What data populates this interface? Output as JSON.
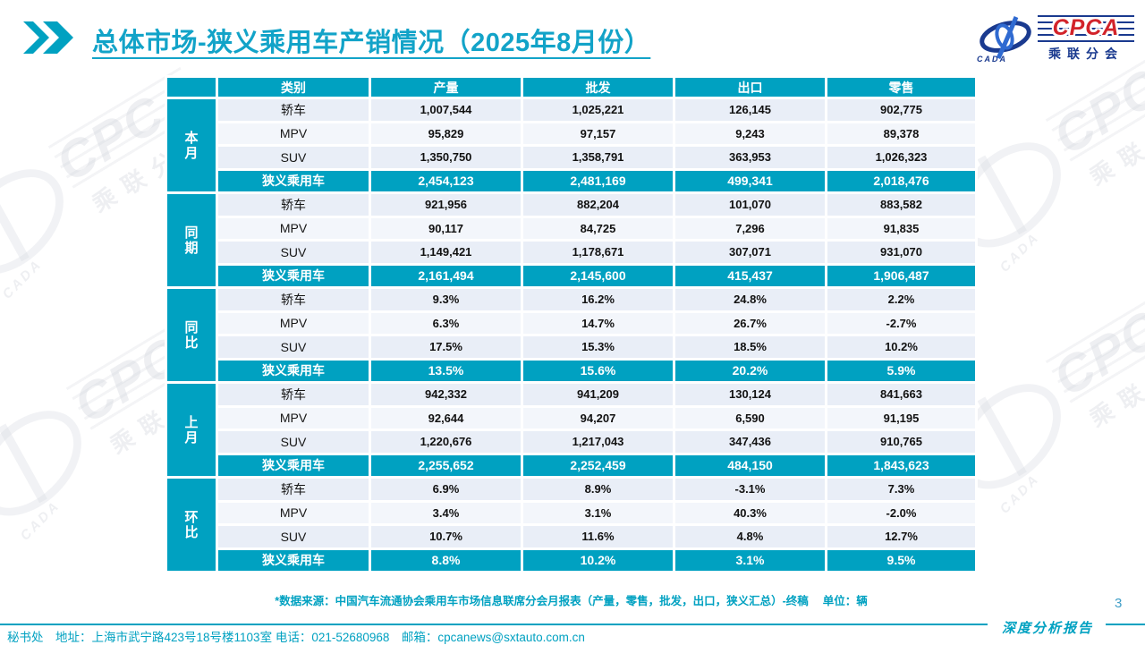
{
  "page": {
    "title": "总体市场-狭义乘用车产销情况（2025年8月份）",
    "footnote": "*数据来源：中国汽车流通协会乘用车市场信息联席分会月报表（产量，零售，批发，出口，狭义汇总）-终稿　 单位：辆",
    "footer_contact": "秘书处　地址：上海市武宁路423号18号楼1103室 电话：021-52680968　邮箱：cpcanews@sxtauto.com.cn",
    "report_label": "深度分析报告",
    "page_number": "3"
  },
  "logo": {
    "cpca": "CPCA",
    "cada": "CADA",
    "subtitle": "乘联分会"
  },
  "colors": {
    "accent": "#00a1c1",
    "title": "#12a3c8",
    "row_light": "#e9eef7",
    "row_lighter": "#f3f6fb",
    "logo_blue": "#1a3a8f",
    "logo_red": "#d2232a",
    "page_number_blue": "#3f9ec7"
  },
  "table": {
    "columns": [
      "类别",
      "产量",
      "批发",
      "出口",
      "零售"
    ],
    "summary_label": "狭义乘用车",
    "groups": [
      {
        "label": "本月",
        "rows": [
          {
            "category": "轿车",
            "values": [
              "1,007,544",
              "1,025,221",
              "126,145",
              "902,775"
            ]
          },
          {
            "category": "MPV",
            "values": [
              "95,829",
              "97,157",
              "9,243",
              "89,378"
            ]
          },
          {
            "category": "SUV",
            "values": [
              "1,350,750",
              "1,358,791",
              "363,953",
              "1,026,323"
            ]
          }
        ],
        "summary": [
          "2,454,123",
          "2,481,169",
          "499,341",
          "2,018,476"
        ]
      },
      {
        "label": "同期",
        "rows": [
          {
            "category": "轿车",
            "values": [
              "921,956",
              "882,204",
              "101,070",
              "883,582"
            ]
          },
          {
            "category": "MPV",
            "values": [
              "90,117",
              "84,725",
              "7,296",
              "91,835"
            ]
          },
          {
            "category": "SUV",
            "values": [
              "1,149,421",
              "1,178,671",
              "307,071",
              "931,070"
            ]
          }
        ],
        "summary": [
          "2,161,494",
          "2,145,600",
          "415,437",
          "1,906,487"
        ]
      },
      {
        "label": "同比",
        "rows": [
          {
            "category": "轿车",
            "values": [
              "9.3%",
              "16.2%",
              "24.8%",
              "2.2%"
            ]
          },
          {
            "category": "MPV",
            "values": [
              "6.3%",
              "14.7%",
              "26.7%",
              "-2.7%"
            ]
          },
          {
            "category": "SUV",
            "values": [
              "17.5%",
              "15.3%",
              "18.5%",
              "10.2%"
            ]
          }
        ],
        "summary": [
          "13.5%",
          "15.6%",
          "20.2%",
          "5.9%"
        ]
      },
      {
        "label": "上月",
        "rows": [
          {
            "category": "轿车",
            "values": [
              "942,332",
              "941,209",
              "130,124",
              "841,663"
            ]
          },
          {
            "category": "MPV",
            "values": [
              "92,644",
              "94,207",
              "6,590",
              "91,195"
            ]
          },
          {
            "category": "SUV",
            "values": [
              "1,220,676",
              "1,217,043",
              "347,436",
              "910,765"
            ]
          }
        ],
        "summary": [
          "2,255,652",
          "2,252,459",
          "484,150",
          "1,843,623"
        ]
      },
      {
        "label": "环比",
        "rows": [
          {
            "category": "轿车",
            "values": [
              "6.9%",
              "8.9%",
              "-3.1%",
              "7.3%"
            ]
          },
          {
            "category": "MPV",
            "values": [
              "3.4%",
              "3.1%",
              "40.3%",
              "-2.0%"
            ]
          },
          {
            "category": "SUV",
            "values": [
              "10.7%",
              "11.6%",
              "4.8%",
              "12.7%"
            ]
          }
        ],
        "summary": [
          "8.8%",
          "10.2%",
          "3.1%",
          "9.5%"
        ]
      }
    ]
  }
}
